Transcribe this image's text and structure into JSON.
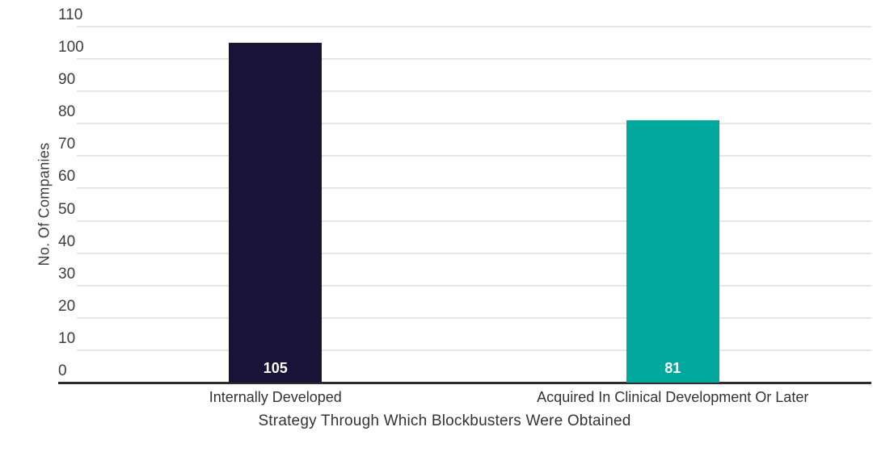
{
  "chart_data": {
    "type": "bar",
    "categories": [
      "Internally Developed",
      "Acquired In Clinical Development Or Later"
    ],
    "values": [
      105,
      81
    ],
    "bar_colors": [
      "#1a1338",
      "#01a99c"
    ],
    "value_label_color": "#ffffff",
    "xlabel": "Strategy Through Which Blockbusters Were Obtained",
    "ylabel": "No. Of Companies",
    "ylim": [
      0,
      110
    ],
    "ytick_step": 10,
    "grid": "horizontal gridlines on",
    "legend": "none",
    "title": ""
  }
}
